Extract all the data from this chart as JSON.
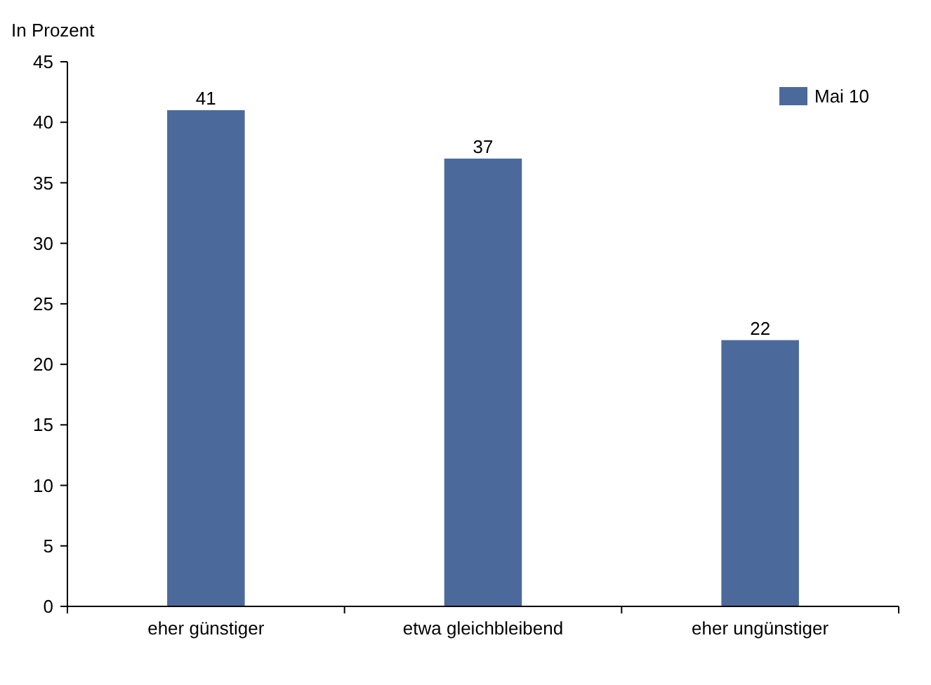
{
  "chart_data": {
    "type": "bar",
    "ylabel": "In Prozent",
    "categories": [
      "eher günstiger",
      "etwa gleichbleibend",
      "eher ungünstiger"
    ],
    "series": [
      {
        "name": "Mai 10",
        "color": "#4b6a9b",
        "values": [
          41,
          37,
          22
        ]
      }
    ],
    "ylim": [
      0,
      45
    ],
    "yticks": [
      0,
      5,
      10,
      15,
      20,
      25,
      30,
      35,
      40,
      45
    ],
    "data_labels": true,
    "legend": "top right",
    "grid": false
  }
}
